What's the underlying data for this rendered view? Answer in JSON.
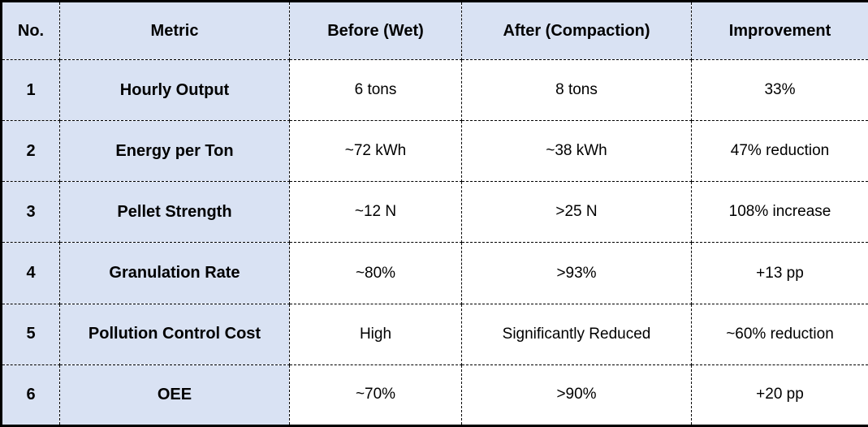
{
  "table": {
    "columns": [
      {
        "label": "No."
      },
      {
        "label": "Metric"
      },
      {
        "label": "Before (Wet)"
      },
      {
        "label": "After (Compaction)"
      },
      {
        "label": "Improvement"
      }
    ],
    "rows": [
      {
        "no": "1",
        "metric": "Hourly Output",
        "before": "6 tons",
        "after": "8 tons",
        "improvement": "33%"
      },
      {
        "no": "2",
        "metric": "Energy per Ton",
        "before": "~72 kWh",
        "after": "~38 kWh",
        "improvement": "47% reduction"
      },
      {
        "no": "3",
        "metric": "Pellet Strength",
        "before": "~12 N",
        "after": ">25 N",
        "improvement": "108% increase"
      },
      {
        "no": "4",
        "metric": "Granulation Rate",
        "before": "~80%",
        "after": ">93%",
        "improvement": "+13 pp"
      },
      {
        "no": "5",
        "metric": "Pollution Control Cost",
        "before": "High",
        "after": "Significantly Reduced",
        "improvement": "~60% reduction"
      },
      {
        "no": "6",
        "metric": "OEE",
        "before": "~70%",
        "after": ">90%",
        "improvement": "+20 pp"
      }
    ],
    "colors": {
      "header_bg": "#d9e2f3",
      "label_bg": "#d9e2f3",
      "cell_bg": "#ffffff",
      "border": "#000000",
      "text": "#000000"
    }
  }
}
